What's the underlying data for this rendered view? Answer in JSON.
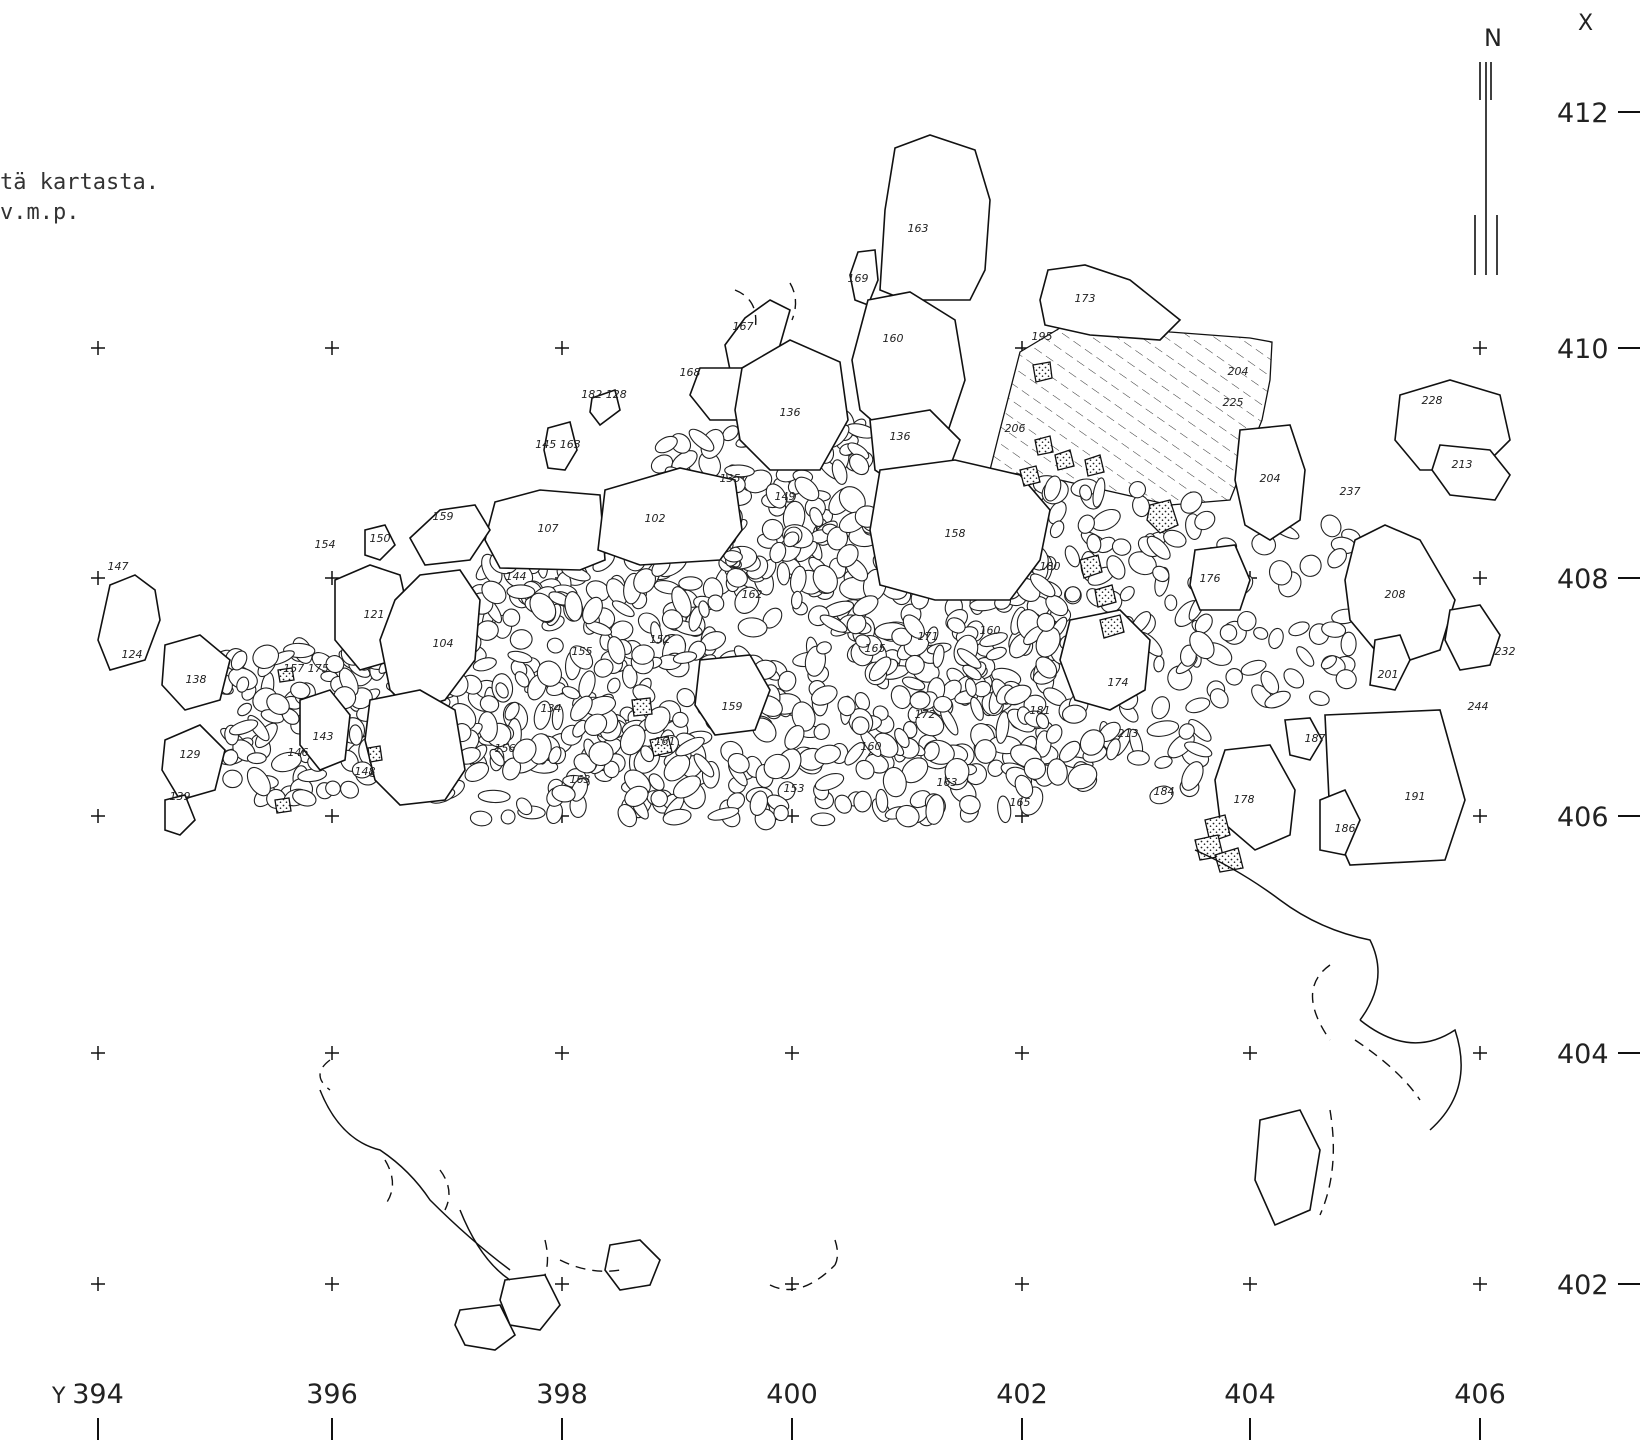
{
  "notes": [
    "tä kartasta.",
    "v.m.p."
  ],
  "axes": {
    "x_label": "X",
    "y_label": "Y",
    "x_ticks": [
      "412",
      "410",
      "408",
      "406",
      "404",
      "402"
    ],
    "y_ticks": [
      "394",
      "396",
      "398",
      "400",
      "402",
      "404",
      "406"
    ]
  },
  "north_arrow": {
    "label": "N"
  },
  "stones": [
    {
      "id": "s163a",
      "label": "163"
    },
    {
      "id": "s169",
      "label": "169"
    },
    {
      "id": "s173",
      "label": "173"
    },
    {
      "id": "s167",
      "label": "167"
    },
    {
      "id": "s160a",
      "label": "160"
    },
    {
      "id": "s195",
      "label": "195"
    },
    {
      "id": "s204a",
      "label": "204"
    },
    {
      "id": "s228",
      "label": "228"
    },
    {
      "id": "s168",
      "label": "168"
    },
    {
      "id": "s136a",
      "label": "136"
    },
    {
      "id": "s136b",
      "label": "136"
    },
    {
      "id": "s182",
      "label": "182 128"
    },
    {
      "id": "s145",
      "label": "145 163"
    },
    {
      "id": "s206",
      "label": "206"
    },
    {
      "id": "s225",
      "label": "225"
    },
    {
      "id": "s213a",
      "label": "213"
    },
    {
      "id": "s204b",
      "label": "204"
    },
    {
      "id": "s237",
      "label": "237"
    },
    {
      "id": "s135",
      "label": "135"
    },
    {
      "id": "s149",
      "label": "149"
    },
    {
      "id": "s158",
      "label": "158"
    },
    {
      "id": "s107",
      "label": "107"
    },
    {
      "id": "s102",
      "label": "102"
    },
    {
      "id": "s159",
      "label": "159"
    },
    {
      "id": "s154a",
      "label": "154"
    },
    {
      "id": "s150",
      "label": "150"
    },
    {
      "id": "s147",
      "label": "147"
    },
    {
      "id": "s144",
      "label": "144"
    },
    {
      "id": "s180",
      "label": "180"
    },
    {
      "id": "s176",
      "label": "176"
    },
    {
      "id": "s208",
      "label": "208"
    },
    {
      "id": "s121",
      "label": "121"
    },
    {
      "id": "s104",
      "label": "104"
    },
    {
      "id": "s124",
      "label": "124"
    },
    {
      "id": "s138",
      "label": "138"
    },
    {
      "id": "s162",
      "label": "162"
    },
    {
      "id": "s155",
      "label": "155"
    },
    {
      "id": "s152",
      "label": "152"
    },
    {
      "id": "s165a",
      "label": "165"
    },
    {
      "id": "s171",
      "label": "171"
    },
    {
      "id": "s160b",
      "label": "160"
    },
    {
      "id": "s174",
      "label": "174"
    },
    {
      "id": "s201",
      "label": "201"
    },
    {
      "id": "s232",
      "label": "232"
    },
    {
      "id": "s244",
      "label": "244"
    },
    {
      "id": "s157",
      "label": "157 175"
    },
    {
      "id": "s143",
      "label": "143"
    },
    {
      "id": "s146",
      "label": "146"
    },
    {
      "id": "s134",
      "label": "134"
    },
    {
      "id": "s159b",
      "label": "159"
    },
    {
      "id": "s156",
      "label": "156"
    },
    {
      "id": "s161",
      "label": "161"
    },
    {
      "id": "s172",
      "label": "172"
    },
    {
      "id": "s181",
      "label": "181"
    },
    {
      "id": "s213b",
      "label": "213"
    },
    {
      "id": "s187",
      "label": "187"
    },
    {
      "id": "s129",
      "label": "129"
    },
    {
      "id": "s148",
      "label": "148"
    },
    {
      "id": "s163b",
      "label": "163"
    },
    {
      "id": "s160c",
      "label": "160"
    },
    {
      "id": "s153",
      "label": "153"
    },
    {
      "id": "s163c",
      "label": "163"
    },
    {
      "id": "s165b",
      "label": "165"
    },
    {
      "id": "s184",
      "label": "184"
    },
    {
      "id": "s178",
      "label": "178"
    },
    {
      "id": "s191",
      "label": "191"
    },
    {
      "id": "s186",
      "label": "186"
    },
    {
      "id": "s139",
      "label": "139"
    }
  ]
}
